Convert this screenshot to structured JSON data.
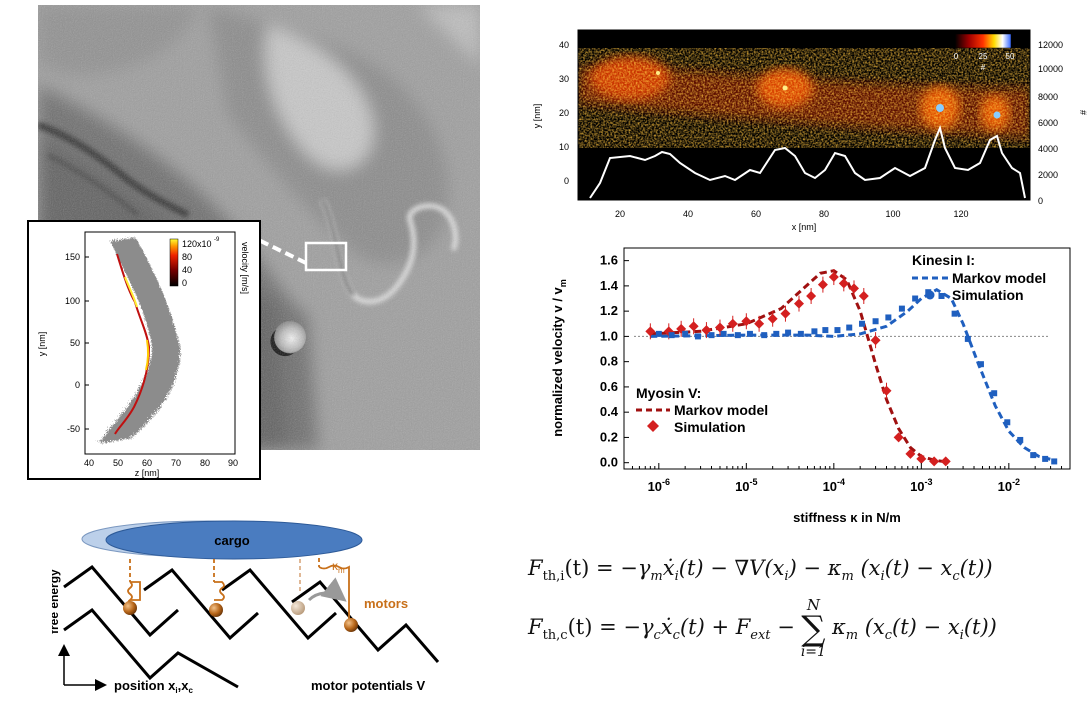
{
  "micrograph": {
    "caption": "grayscale microscopy image of a cell with zoom box"
  },
  "inset": {
    "xaxis_label": "z [nm]",
    "yaxis_label": "y [nm]",
    "x_ticks": [
      "40",
      "50",
      "60",
      "70",
      "80",
      "90"
    ],
    "y_ticks": [
      "150",
      "100",
      "50",
      "0",
      "-50"
    ],
    "colorbar_ticks": [
      "120x10",
      "80",
      "40",
      "0"
    ],
    "colorbar_exp": "-9",
    "colorbar_label": "velocity [m/s]"
  },
  "heatmap": {
    "xaxis_label": "x [nm]",
    "yaxis_label": "y [nm]",
    "right_label": "#",
    "x_ticks": [
      "20",
      "40",
      "60",
      "80",
      "100",
      "120"
    ],
    "y_ticks": [
      "40",
      "30",
      "20",
      "10",
      "0"
    ],
    "right_ticks": [
      "12000",
      "10000",
      "8000",
      "6000",
      "4000",
      "2000",
      "0"
    ],
    "colorbar_ticks": [
      "0",
      "25",
      "50"
    ],
    "colorbar_label": "#"
  },
  "chart_data": {
    "type": "scatter",
    "xlabel": "stiffness κ in N/m",
    "ylabel": "normalized velocity v / v",
    "ylabel_sub": "m",
    "xscale": "log",
    "xlim": [
      4e-07,
      0.05
    ],
    "ylim": [
      -0.05,
      1.7
    ],
    "x_ticks": [
      {
        "base": "10",
        "exp": "-6",
        "x": 1e-06
      },
      {
        "base": "10",
        "exp": "-5",
        "x": 1e-05
      },
      {
        "base": "10",
        "exp": "-4",
        "x": 0.0001
      },
      {
        "base": "10",
        "exp": "-3",
        "x": 0.001
      },
      {
        "base": "10",
        "exp": "-2",
        "x": 0.01
      }
    ],
    "y_ticks": [
      "0.0",
      "0.2",
      "0.4",
      "0.6",
      "0.8",
      "1.0",
      "1.2",
      "1.4",
      "1.6"
    ],
    "reference_line": 1.0,
    "legend_kinesin": {
      "title": "Kinesin I:",
      "model": "Markov model",
      "sim": "Simulation"
    },
    "legend_myosin": {
      "title": "Myosin V:",
      "model": "Markov model",
      "sim": "Simulation"
    },
    "series": [
      {
        "name": "Myosin V Simulation",
        "color": "#d42020",
        "marker": "diamond",
        "x": [
          8e-07,
          1.3e-06,
          1.8e-06,
          2.5e-06,
          3.5e-06,
          5e-06,
          7e-06,
          1e-05,
          1.4e-05,
          2e-05,
          2.8e-05,
          4e-05,
          5.5e-05,
          7.5e-05,
          0.0001,
          0.00013,
          0.00017,
          0.00022,
          0.0003,
          0.0004,
          0.00055,
          0.00075,
          0.001,
          0.0014,
          0.0019
        ],
        "y": [
          1.04,
          1.04,
          1.06,
          1.08,
          1.05,
          1.07,
          1.1,
          1.12,
          1.1,
          1.14,
          1.18,
          1.26,
          1.32,
          1.41,
          1.47,
          1.42,
          1.38,
          1.32,
          0.97,
          0.57,
          0.2,
          0.07,
          0.03,
          0.01,
          0.01
        ]
      },
      {
        "name": "Myosin V Markov model",
        "color": "#a01010",
        "style": "dashed",
        "x": [
          8e-07,
          3e-06,
          1e-05,
          2.5e-05,
          4.5e-05,
          7e-05,
          0.0001,
          0.00014,
          0.0002,
          0.0003,
          0.0004,
          0.00055,
          0.00075,
          0.001,
          0.0014,
          0.002
        ],
        "y": [
          1.02,
          1.04,
          1.1,
          1.22,
          1.38,
          1.5,
          1.52,
          1.45,
          1.2,
          0.78,
          0.5,
          0.27,
          0.12,
          0.05,
          0.02,
          0.005
        ]
      },
      {
        "name": "Kinesin I Simulation",
        "color": "#1f5fbf",
        "marker": "square",
        "x": [
          1e-06,
          1.4e-06,
          2e-06,
          2.8e-06,
          4e-06,
          5.5e-06,
          8e-06,
          1.1e-05,
          1.6e-05,
          2.2e-05,
          3e-05,
          4.2e-05,
          6e-05,
          8e-05,
          0.00011,
          0.00015,
          0.00021,
          0.0003,
          0.00042,
          0.0006,
          0.00085,
          0.0012,
          0.0017,
          0.0024,
          0.0034,
          0.0048,
          0.0068,
          0.0096,
          0.0135,
          0.019,
          0.026,
          0.033
        ],
        "y": [
          1.02,
          1.01,
          1.02,
          1.0,
          1.01,
          1.02,
          1.01,
          1.02,
          1.01,
          1.02,
          1.03,
          1.02,
          1.04,
          1.05,
          1.05,
          1.07,
          1.1,
          1.12,
          1.15,
          1.22,
          1.3,
          1.35,
          1.32,
          1.18,
          0.98,
          0.78,
          0.55,
          0.32,
          0.18,
          0.06,
          0.03,
          0.01
        ]
      },
      {
        "name": "Kinesin I Markov model",
        "color": "#1f5fbf",
        "style": "dashed",
        "x": [
          8e-07,
          1e-05,
          5e-05,
          0.0001,
          0.0002,
          0.0004,
          0.0007,
          0.001,
          0.0015,
          0.0022,
          0.003,
          0.0045,
          0.007,
          0.01,
          0.015,
          0.022,
          0.033
        ],
        "y": [
          1.0,
          1.01,
          1.01,
          1.0,
          1.02,
          1.08,
          1.2,
          1.3,
          1.37,
          1.3,
          1.1,
          0.78,
          0.45,
          0.25,
          0.12,
          0.05,
          0.02
        ]
      }
    ]
  },
  "schematic": {
    "cargo_label": "cargo",
    "kappa_label": "κ",
    "kappa_sub": "m",
    "motors_label": "motors",
    "yaxis_label": "free energy",
    "xaxis_label": "position x",
    "xaxis_sub": "i",
    "xaxis_tail": ",x",
    "xaxis_sub2": "c",
    "potentials_label": "motor potentials V"
  },
  "equations": {
    "eq1": {
      "lhs": "F",
      "lhs_sub": "th,i",
      "lhs_arg": "(t) = −",
      "t1": "γ",
      "t1_sub": "m",
      "t1_rest": "ẋ",
      "t1_sub2": "i",
      "t1_tail": "(t) − ∇V(x",
      "t2_sub": "i",
      "t2_tail": ") − κ",
      "t3_sub": "m",
      "t3_tail": " (x",
      "t4_sub": "i",
      "t4_tail": "(t) − x",
      "t5_sub": "c",
      "t5_tail": "(t))"
    },
    "eq2": {
      "lhs": "F",
      "lhs_sub": "th,c",
      "lhs_arg": "(t) = −",
      "t1": "γ",
      "t1_sub": "c",
      "t1_rest": "ẋ",
      "t1_sub2": "c",
      "t1_tail": "(t) + F",
      "t2_sub": "ext",
      "t2_tail": " −",
      "sum_top": "N",
      "sum_sym": "∑",
      "sum_bot": "i=1",
      "t3": "κ",
      "t3_sub": "m",
      "t3_tail": " (x",
      "t4_sub": "c",
      "t4_tail": "(t) − x",
      "t5_sub": "i",
      "t5_tail": "(t))"
    }
  }
}
